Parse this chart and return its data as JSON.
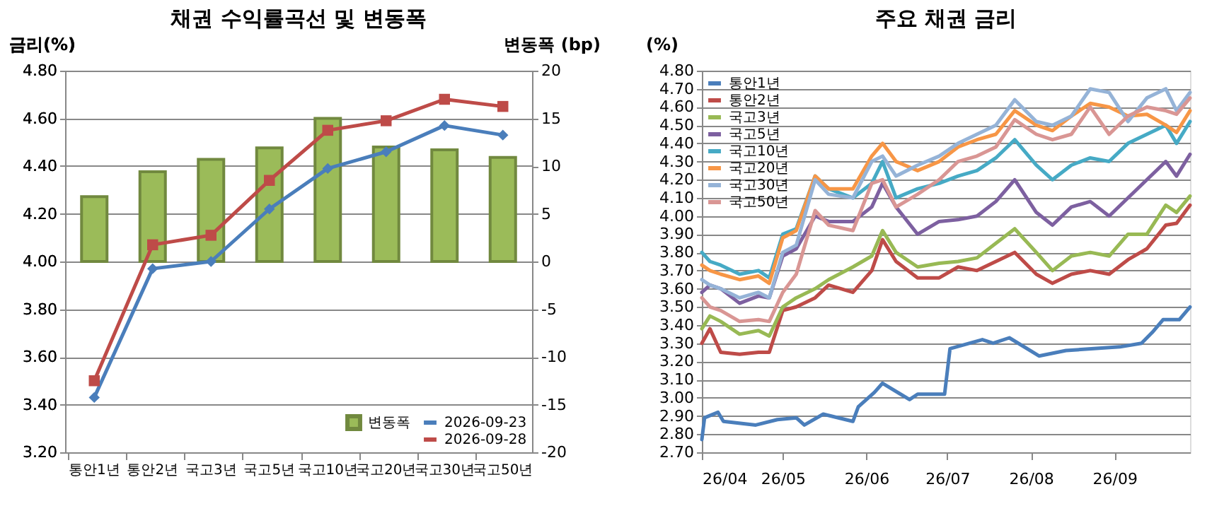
{
  "chart_data": [
    {
      "type": "bar",
      "title": "채권 수익률곡선 및 변동폭",
      "ylabel": "금리(%)",
      "y2label": "변동폭 (bp)",
      "categories": [
        "통안1년",
        "통안2년",
        "국고3년",
        "국고5년",
        "국고10년",
        "국고20년",
        "국고30년",
        "국고50년"
      ],
      "series": [
        {
          "name": "변동폭",
          "type": "bar",
          "axis": "y2",
          "color": "#9bbb59",
          "values": [
            6.8,
            9.4,
            10.7,
            11.9,
            15.0,
            12.0,
            11.7,
            10.9
          ]
        },
        {
          "name": "2026-09-23",
          "type": "line",
          "marker": "diamond",
          "color": "#4a7ebb",
          "values": [
            3.43,
            3.97,
            4.0,
            4.22,
            4.39,
            4.46,
            4.57,
            4.53
          ]
        },
        {
          "name": "2026-09-28",
          "type": "line",
          "marker": "square",
          "color": "#be4b48",
          "values": [
            3.5,
            4.07,
            4.11,
            4.34,
            4.55,
            4.59,
            4.68,
            4.65
          ]
        }
      ],
      "ylim": [
        3.2,
        4.8
      ],
      "yticks": [
        {
          "value": 3.2,
          "label": "3.20"
        },
        {
          "value": 3.4,
          "label": "3.40"
        },
        {
          "value": 3.6,
          "label": "3.60"
        },
        {
          "value": 3.8,
          "label": "3.80"
        },
        {
          "value": 4.0,
          "label": "4.00"
        },
        {
          "value": 4.2,
          "label": "4.20"
        },
        {
          "value": 4.4,
          "label": "4.40"
        },
        {
          "value": 4.6,
          "label": "4.60"
        },
        {
          "value": 4.8,
          "label": "4.80"
        }
      ],
      "y2lim": [
        -20,
        20
      ],
      "y2ticks": [
        -20,
        -15,
        -10,
        -5,
        0,
        5,
        10,
        15,
        20
      ],
      "grid": "y",
      "legend": "bottom right"
    },
    {
      "type": "line",
      "title": "주요 채권 금리",
      "ylabel": "(%)",
      "marker": "none",
      "x": [
        "2026-04-01",
        "2026-04-04",
        "2026-04-08",
        "2026-04-15",
        "2026-04-22",
        "2026-04-26",
        "2026-05-01",
        "2026-05-06",
        "2026-05-13",
        "2026-05-18",
        "2026-05-27",
        "2026-06-03",
        "2026-06-07",
        "2026-06-12",
        "2026-06-20",
        "2026-06-28",
        "2026-07-05",
        "2026-07-12",
        "2026-07-19",
        "2026-07-26",
        "2026-08-03",
        "2026-08-09",
        "2026-08-16",
        "2026-08-23",
        "2026-08-30",
        "2026-09-06",
        "2026-09-13",
        "2026-09-20",
        "2026-09-24",
        "2026-09-29"
      ],
      "series": [
        {
          "name": "통안1년",
          "color": "#4a7ebb",
          "x": [
            "2026-04-01",
            "2026-04-02",
            "2026-04-07",
            "2026-04-09",
            "2026-04-21",
            "2026-04-29",
            "2026-05-06",
            "2026-05-09",
            "2026-05-16",
            "2026-05-27",
            "2026-05-29",
            "2026-06-04",
            "2026-06-07",
            "2026-06-17",
            "2026-06-20",
            "2026-06-30",
            "2026-07-02",
            "2026-07-14",
            "2026-07-18",
            "2026-07-24",
            "2026-08-04",
            "2026-08-14",
            "2026-09-03",
            "2026-09-11",
            "2026-09-15",
            "2026-09-19",
            "2026-09-25",
            "2026-09-29"
          ],
          "values": [
            2.77,
            2.89,
            2.92,
            2.87,
            2.85,
            2.88,
            2.89,
            2.85,
            2.91,
            2.87,
            2.95,
            3.03,
            3.08,
            2.99,
            3.02,
            3.02,
            3.27,
            3.32,
            3.3,
            3.33,
            3.23,
            3.26,
            3.28,
            3.3,
            3.36,
            3.43,
            3.43,
            3.5
          ]
        },
        {
          "name": "통안2년",
          "color": "#be4b48",
          "values": [
            3.3,
            3.38,
            3.25,
            3.24,
            3.25,
            3.25,
            3.48,
            3.5,
            3.55,
            3.62,
            3.58,
            3.7,
            3.87,
            3.75,
            3.66,
            3.66,
            3.72,
            3.7,
            3.75,
            3.8,
            3.68,
            3.63,
            3.68,
            3.7,
            3.68,
            3.76,
            3.82,
            3.95,
            3.96,
            4.06
          ]
        },
        {
          "name": "국고3년",
          "color": "#98b954",
          "values": [
            3.38,
            3.45,
            3.42,
            3.35,
            3.37,
            3.34,
            3.5,
            3.55,
            3.6,
            3.65,
            3.72,
            3.78,
            3.92,
            3.8,
            3.72,
            3.74,
            3.75,
            3.77,
            3.85,
            3.93,
            3.8,
            3.7,
            3.78,
            3.8,
            3.78,
            3.9,
            3.9,
            4.06,
            4.02,
            4.11
          ]
        },
        {
          "name": "국고5년",
          "color": "#7d60a0",
          "values": [
            3.58,
            3.62,
            3.6,
            3.52,
            3.56,
            3.55,
            3.78,
            3.82,
            4.0,
            3.97,
            3.97,
            4.05,
            4.18,
            4.05,
            3.9,
            3.97,
            3.98,
            4.0,
            4.08,
            4.2,
            4.02,
            3.95,
            4.05,
            4.08,
            4.0,
            4.1,
            4.2,
            4.3,
            4.22,
            4.34
          ]
        },
        {
          "name": "국고10년",
          "color": "#46aac5",
          "values": [
            3.8,
            3.75,
            3.73,
            3.68,
            3.7,
            3.66,
            3.9,
            3.93,
            4.22,
            4.15,
            4.1,
            4.18,
            4.3,
            4.1,
            4.15,
            4.18,
            4.22,
            4.25,
            4.32,
            4.42,
            4.28,
            4.2,
            4.28,
            4.32,
            4.3,
            4.4,
            4.45,
            4.5,
            4.4,
            4.52
          ]
        },
        {
          "name": "국고20년",
          "color": "#f79646",
          "values": [
            3.73,
            3.7,
            3.68,
            3.65,
            3.67,
            3.63,
            3.88,
            3.92,
            4.22,
            4.15,
            4.15,
            4.33,
            4.4,
            4.3,
            4.25,
            4.3,
            4.38,
            4.42,
            4.45,
            4.58,
            4.5,
            4.47,
            4.55,
            4.62,
            4.6,
            4.55,
            4.56,
            4.5,
            4.46,
            4.58
          ]
        },
        {
          "name": "국고30년",
          "color": "#95b3d7",
          "values": [
            3.65,
            3.62,
            3.6,
            3.55,
            3.58,
            3.55,
            3.8,
            3.84,
            4.2,
            4.12,
            4.1,
            4.3,
            4.33,
            4.22,
            4.28,
            4.33,
            4.4,
            4.45,
            4.5,
            4.64,
            4.52,
            4.5,
            4.55,
            4.7,
            4.68,
            4.52,
            4.65,
            4.7,
            4.58,
            4.68
          ]
        },
        {
          "name": "국고50년",
          "color": "#d99694",
          "values": [
            3.55,
            3.5,
            3.48,
            3.42,
            3.43,
            3.42,
            3.58,
            3.68,
            4.03,
            3.95,
            3.92,
            4.18,
            4.2,
            4.05,
            4.12,
            4.2,
            4.3,
            4.33,
            4.38,
            4.53,
            4.45,
            4.42,
            4.45,
            4.6,
            4.45,
            4.55,
            4.6,
            4.58,
            4.56,
            4.65
          ]
        }
      ],
      "xlim": [
        "2026-04-01",
        "2026-09-29"
      ],
      "xticks": [
        {
          "value": "2026-04-01",
          "label": "26/04"
        },
        {
          "value": "2026-05-01",
          "label": "26/05"
        },
        {
          "value": "2026-06-01",
          "label": "26/06"
        },
        {
          "value": "2026-07-01",
          "label": "26/07"
        },
        {
          "value": "2026-08-01",
          "label": "26/08"
        },
        {
          "value": "2026-09-01",
          "label": "26/09"
        }
      ],
      "ylim": [
        2.7,
        4.8
      ],
      "yticks": [
        {
          "value": 2.7,
          "label": "2.70"
        },
        {
          "value": 2.8,
          "label": "2.80"
        },
        {
          "value": 2.9,
          "label": "2.90"
        },
        {
          "value": 3.0,
          "label": "3.00"
        },
        {
          "value": 3.1,
          "label": "3.10"
        },
        {
          "value": 3.2,
          "label": "3.20"
        },
        {
          "value": 3.3,
          "label": "3.30"
        },
        {
          "value": 3.4,
          "label": "3.40"
        },
        {
          "value": 3.5,
          "label": "3.50"
        },
        {
          "value": 3.6,
          "label": "3.60"
        },
        {
          "value": 3.7,
          "label": "3.70"
        },
        {
          "value": 3.8,
          "label": "3.80"
        },
        {
          "value": 3.9,
          "label": "3.90"
        },
        {
          "value": 4.0,
          "label": "4.00"
        },
        {
          "value": 4.1,
          "label": "4.10"
        },
        {
          "value": 4.2,
          "label": "4.20"
        },
        {
          "value": 4.3,
          "label": "4.30"
        },
        {
          "value": 4.4,
          "label": "4.40"
        },
        {
          "value": 4.5,
          "label": "4.50"
        },
        {
          "value": 4.6,
          "label": "4.60"
        },
        {
          "value": 4.7,
          "label": "4.70"
        },
        {
          "value": 4.8,
          "label": "4.80"
        }
      ],
      "grid": "y",
      "legend": "top left"
    }
  ]
}
